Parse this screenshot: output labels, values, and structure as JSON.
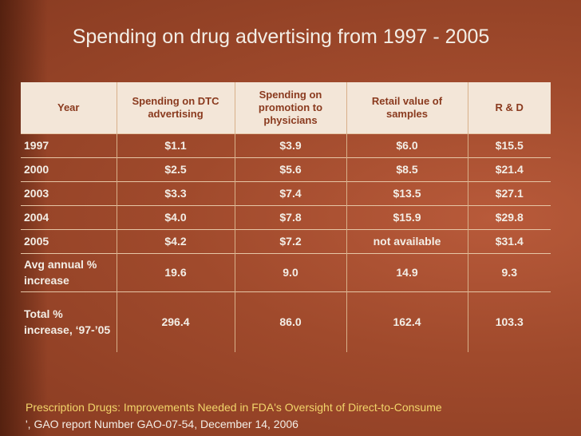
{
  "title": "Spending on drug advertising from 1997 - 2005",
  "table": {
    "headers": [
      "Year",
      "Spending on DTC advertising",
      "Spending on promotion to physicians",
      "Retail value of samples",
      "R & D"
    ],
    "rows": [
      [
        "1997",
        "$1.1",
        "$3.9",
        "$6.0",
        "$15.5"
      ],
      [
        "2000",
        "$2.5",
        "$5.6",
        "$8.5",
        "$21.4"
      ],
      [
        "2003",
        "$3.3",
        "$7.4",
        "$13.5",
        "$27.1"
      ],
      [
        "2004",
        "$4.0",
        "$7.8",
        "$15.9",
        "$29.8"
      ],
      [
        "2005",
        "$4.2",
        "$7.2",
        "not available",
        "$31.4"
      ],
      [
        "Avg annual % increase",
        "19.6",
        "9.0",
        "14.9",
        "9.3"
      ],
      [
        "Total % increase, ‘97-’05",
        "296.4",
        "86.0",
        "162.4",
        "103.3"
      ]
    ]
  },
  "source": {
    "lead": "Prescription Drugs: Improvements Needed in FDA's Oversight of Direct-to-Consume",
    "rest": "', GAO report Number GAO-07-54, December 14, 2006"
  }
}
